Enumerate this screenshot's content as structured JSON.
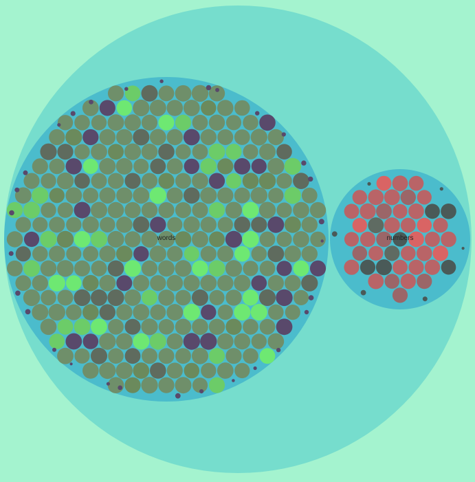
{
  "chart_data": {
    "type": "packed-circles",
    "root": {
      "groups": [
        {
          "name": "words",
          "leaf_count": 360,
          "fill": "#4bbccc",
          "leaf_palette": [
            "#6f8f6a",
            "#6b8a5c",
            "#5f6b5e",
            "#59496b",
            "#6ccc68",
            "#6ee872"
          ]
        },
        {
          "name": "numbers",
          "leaf_count": 46,
          "fill": "#4bbccc",
          "leaf_palette": [
            "#b96467",
            "#9b6668",
            "#5f6b62",
            "#4a5a58",
            "#d96464"
          ]
        }
      ]
    },
    "colors": {
      "background": "#a4f3cf",
      "root_fill": "#76ddcd",
      "group_fill": "#4bbccc"
    }
  }
}
